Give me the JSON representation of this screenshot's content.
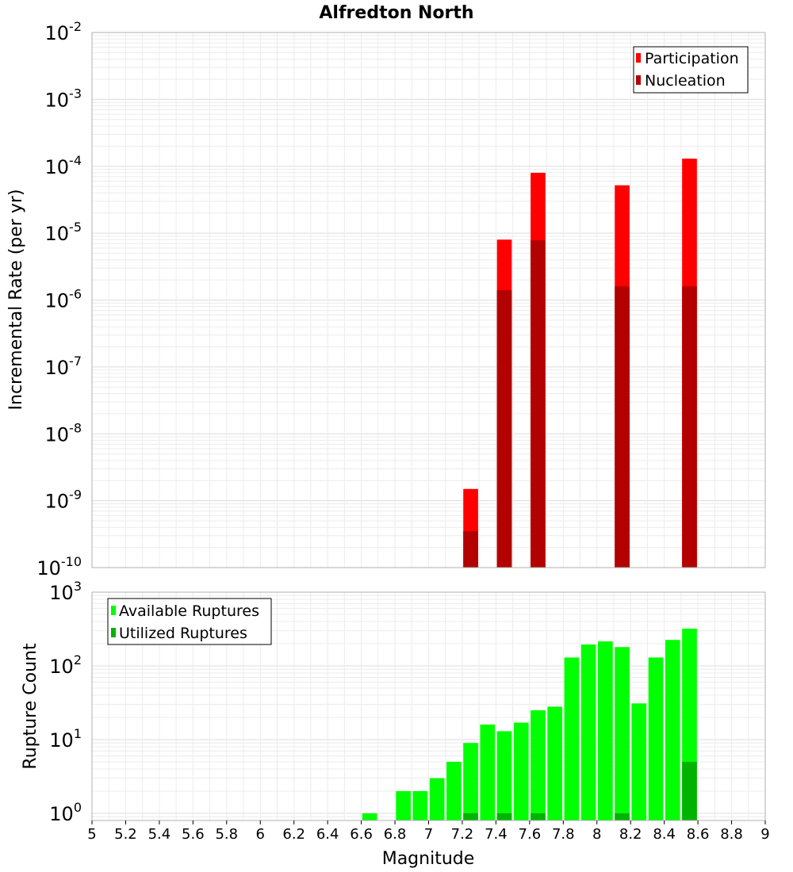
{
  "chart_data": [
    {
      "type": "bar",
      "title": "Alfredton North",
      "ylabel": "Incremental Rate (per yr)",
      "yscale": "log",
      "ylim": [
        1e-10,
        0.01
      ],
      "yticks": [
        {
          "base": "10",
          "exp": "-10"
        },
        {
          "base": "10",
          "exp": "-9"
        },
        {
          "base": "10",
          "exp": "-8"
        },
        {
          "base": "10",
          "exp": "-7"
        },
        {
          "base": "10",
          "exp": "-6"
        },
        {
          "base": "10",
          "exp": "-5"
        },
        {
          "base": "10",
          "exp": "-4"
        },
        {
          "base": "10",
          "exp": "-3"
        },
        {
          "base": "10",
          "exp": "-2"
        }
      ],
      "grid": true,
      "legend_position": "top-right",
      "x": [
        7.25,
        7.45,
        7.65,
        8.15,
        8.55
      ],
      "series": [
        {
          "name": "Participation",
          "color": "#ff0000",
          "values": [
            1.5e-09,
            8e-06,
            8e-05,
            5.2e-05,
            0.00013
          ]
        },
        {
          "name": "Nucleation",
          "color": "#b30000",
          "values": [
            3.5e-10,
            1.4e-06,
            7.8e-06,
            1.6e-06,
            1.6e-06
          ]
        }
      ]
    },
    {
      "type": "bar",
      "xlabel": "Magnitude",
      "ylabel": "Rupture Count",
      "yscale": "log",
      "ylim": [
        0.8,
        1000
      ],
      "yticks": [
        {
          "base": "10",
          "exp": "0",
          "value": 1
        },
        {
          "base": "10",
          "exp": "1",
          "value": 10
        },
        {
          "base": "10",
          "exp": "2",
          "value": 100
        },
        {
          "base": "10",
          "exp": "3",
          "value": 1000
        }
      ],
      "xlim": [
        5,
        9
      ],
      "xticks": [
        "5",
        "5.2",
        "5.4",
        "5.6",
        "5.8",
        "6",
        "6.2",
        "6.4",
        "6.6",
        "6.8",
        "7",
        "7.2",
        "7.4",
        "7.6",
        "7.8",
        "8",
        "8.2",
        "8.4",
        "8.6",
        "8.8",
        "9"
      ],
      "grid": true,
      "legend_position": "top-left",
      "x": [
        6.65,
        6.85,
        6.95,
        7.05,
        7.15,
        7.25,
        7.35,
        7.45,
        7.55,
        7.65,
        7.75,
        7.85,
        7.95,
        8.05,
        8.15,
        8.25,
        8.35,
        8.45,
        8.55
      ],
      "series": [
        {
          "name": "Available Ruptures",
          "color": "#00ff00",
          "values": [
            1,
            2,
            2,
            3,
            5,
            9,
            16,
            13,
            17,
            25,
            28,
            130,
            195,
            215,
            180,
            31,
            130,
            225,
            320
          ]
        },
        {
          "name": "Utilized Ruptures",
          "color": "#00b300",
          "values": [
            0,
            0,
            0,
            0,
            0,
            1,
            0,
            1,
            0,
            1,
            0,
            0,
            0,
            0,
            1,
            0,
            0,
            0,
            5
          ]
        }
      ]
    }
  ]
}
